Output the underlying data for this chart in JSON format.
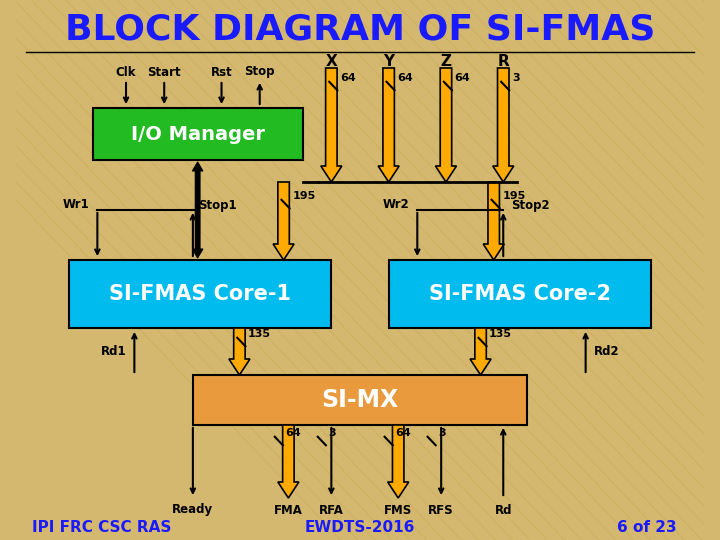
{
  "title": "BLOCK DIAGRAM OF SI-FMAS",
  "title_color": "#1a1aff",
  "title_fontsize": 26,
  "bg_color": "#d4b870",
  "io_manager_color": "#22bb22",
  "core_color": "#00bbee",
  "simx_color": "#e89a3c",
  "arrow_color": "#ffaa00",
  "black": "#000000",
  "white": "#ffffff",
  "footer_left": "IPI FRC CSC RAS",
  "footer_center": "EWDTS-2016",
  "footer_right": "6 of 23",
  "stripe_color": "#c8a84a"
}
